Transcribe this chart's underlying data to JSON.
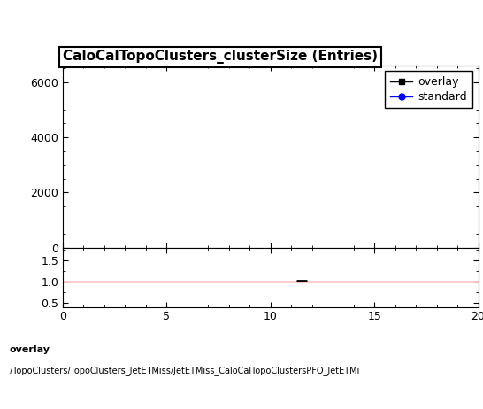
{
  "title": "CaloCalTopoClusters_clusterSize (Entries)",
  "title_fontsize": 11,
  "title_fontweight": "bold",
  "legend_entries": [
    "overlay",
    "standard"
  ],
  "legend_colors": [
    "black",
    "blue"
  ],
  "legend_markers": [
    "s",
    "o"
  ],
  "main_ylim": [
    0,
    6600
  ],
  "main_yticks": [
    0,
    2000,
    4000,
    6000
  ],
  "ratio_ylim": [
    0.4,
    1.8
  ],
  "ratio_yticks": [
    0.5,
    1.0,
    1.5
  ],
  "xlim": [
    0,
    20
  ],
  "xticks": [
    0,
    5,
    10,
    15,
    20
  ],
  "ratio_hline_color": "red",
  "ratio_hline_y": 1.0,
  "ratio_data_x": [
    11.5
  ],
  "ratio_data_y": [
    1.02
  ],
  "footer_line1": "overlay",
  "footer_line2": "/TopoClusters/TopoClusters_JetETMiss/JetETMiss_CaloCalTopoClustersPFO_JetETMi",
  "background_color": "white"
}
